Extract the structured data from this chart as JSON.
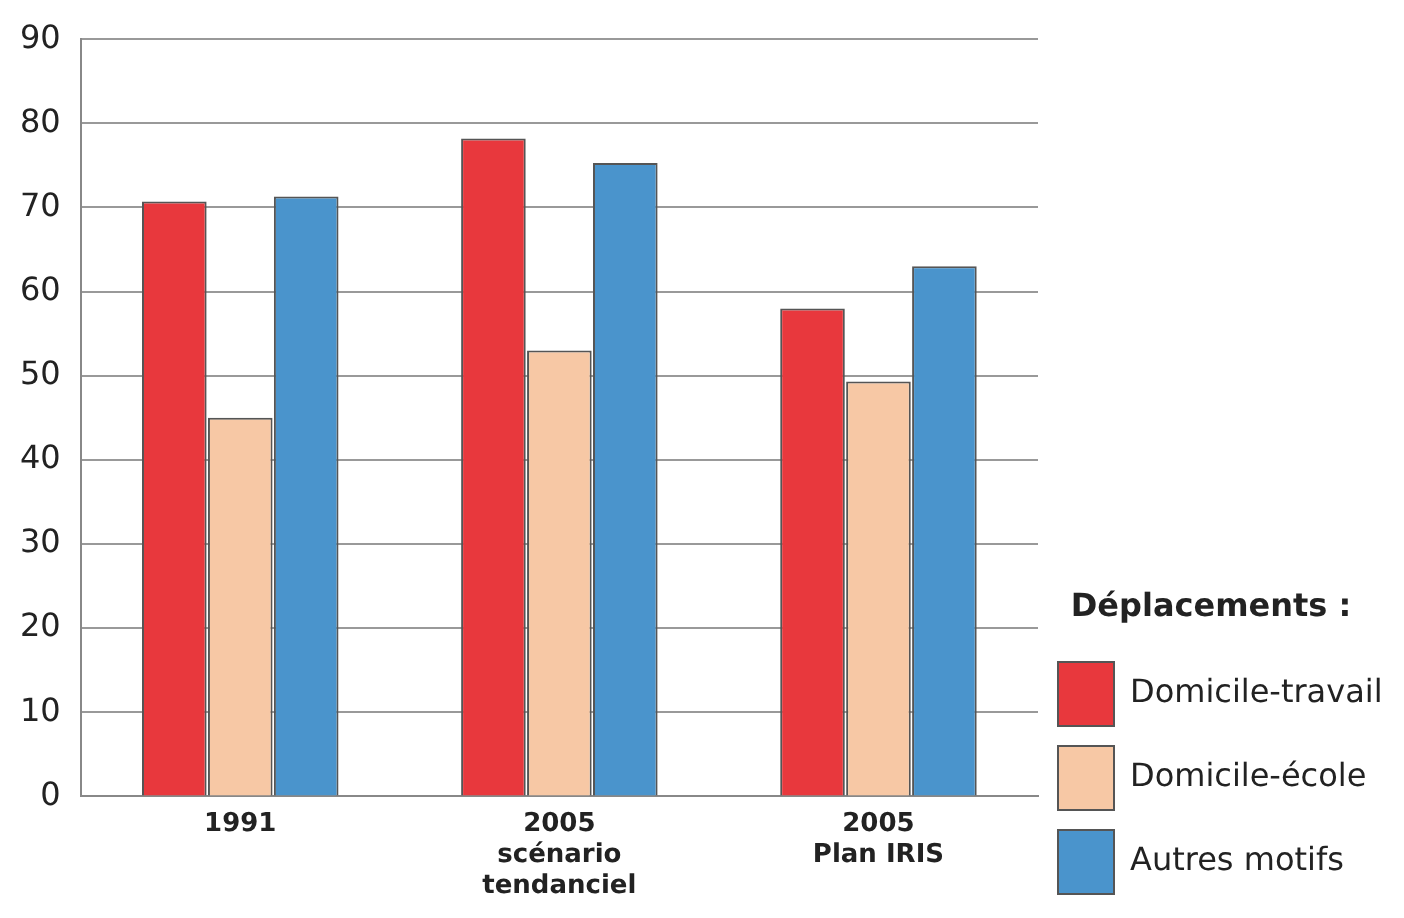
{
  "chart_data": {
    "type": "bar",
    "categories": [
      "1991",
      "2005\nscénario\ntendanciel",
      "2005\nPlan IRIS"
    ],
    "series": [
      {
        "name": "Domicile-travail",
        "color": "#e8383d",
        "values": [
          70.7,
          78.2,
          58
        ]
      },
      {
        "name": "Domicile-école",
        "color": "#f7c8a5",
        "values": [
          45,
          53,
          49.3
        ]
      },
      {
        "name": "Autres motifs",
        "color": "#4a94cc",
        "values": [
          71.3,
          75.3,
          63
        ]
      }
    ],
    "legend_title": "Déplacements :",
    "legend": "right",
    "grid": "y",
    "ylim": [
      0,
      90
    ],
    "yticks": [
      0,
      10,
      20,
      30,
      40,
      50,
      60,
      70,
      80,
      90
    ]
  }
}
